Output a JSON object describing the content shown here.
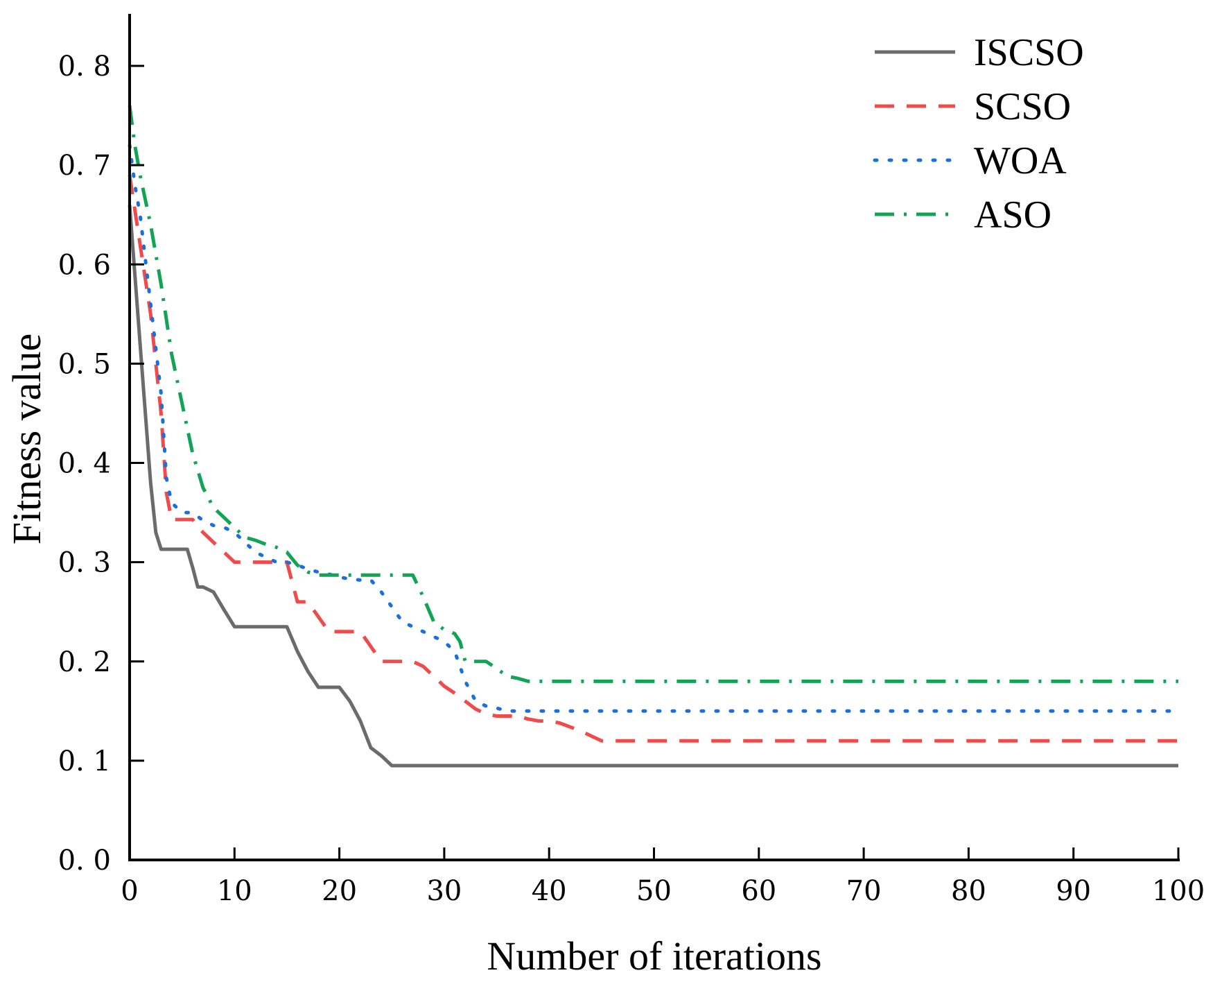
{
  "chart_data": {
    "type": "line",
    "title": "",
    "xlabel": "Number of iterations",
    "ylabel": "Fitness value",
    "xlim": [
      0,
      100
    ],
    "ylim": [
      0,
      0.85
    ],
    "xticks": [
      0,
      10,
      20,
      30,
      40,
      50,
      60,
      70,
      80,
      90,
      100
    ],
    "yticks": [
      0.0,
      0.1,
      0.2,
      0.3,
      0.4,
      0.5,
      0.6,
      0.7,
      0.8
    ],
    "xtick_labels": [
      "0",
      "10",
      "20",
      "30",
      "40",
      "50",
      "60",
      "70",
      "80",
      "90",
      "100"
    ],
    "ytick_labels": [
      "0. 0",
      "0. 1",
      "0. 2",
      "0. 3",
      "0. 4",
      "0. 5",
      "0. 6",
      "0. 7",
      "0. 8"
    ],
    "grid": false,
    "legend_position": "top-right",
    "series": [
      {
        "name": "ISCSO",
        "color": "#6b6b6b",
        "dash": "solid",
        "x": [
          0,
          1,
          2,
          2.5,
          3,
          4,
          5,
          5.5,
          6,
          6.5,
          7,
          8,
          9,
          10,
          11,
          12,
          13,
          14,
          15,
          16,
          17,
          18,
          19,
          20,
          21,
          22,
          23,
          24,
          25,
          30,
          40,
          50,
          60,
          70,
          80,
          90,
          100
        ],
        "y": [
          0.66,
          0.52,
          0.38,
          0.33,
          0.313,
          0.313,
          0.313,
          0.313,
          0.295,
          0.275,
          0.275,
          0.27,
          0.252,
          0.235,
          0.235,
          0.235,
          0.235,
          0.235,
          0.235,
          0.21,
          0.19,
          0.174,
          0.174,
          0.174,
          0.16,
          0.14,
          0.113,
          0.105,
          0.095,
          0.095,
          0.095,
          0.095,
          0.095,
          0.095,
          0.095,
          0.095,
          0.095
        ]
      },
      {
        "name": "SCSO",
        "color": "#f04a4a",
        "dash": "dashed",
        "x": [
          0,
          1,
          2,
          2.5,
          3,
          3.5,
          4,
          5,
          6,
          7,
          8,
          9,
          10,
          11,
          12,
          13,
          14,
          15,
          16,
          17,
          18,
          19,
          20,
          21,
          22,
          23,
          24,
          25,
          26,
          27,
          28,
          29,
          30,
          31,
          32,
          33,
          34,
          35,
          36,
          37,
          38,
          39,
          40,
          41,
          42,
          43,
          44,
          45,
          46,
          50,
          60,
          70,
          80,
          90,
          100
        ],
        "y": [
          0.69,
          0.62,
          0.55,
          0.5,
          0.45,
          0.37,
          0.343,
          0.343,
          0.343,
          0.33,
          0.32,
          0.31,
          0.3,
          0.3,
          0.3,
          0.3,
          0.3,
          0.3,
          0.26,
          0.26,
          0.245,
          0.23,
          0.23,
          0.23,
          0.23,
          0.215,
          0.2,
          0.2,
          0.2,
          0.2,
          0.195,
          0.185,
          0.175,
          0.168,
          0.16,
          0.152,
          0.147,
          0.145,
          0.145,
          0.145,
          0.142,
          0.14,
          0.14,
          0.138,
          0.134,
          0.13,
          0.125,
          0.12,
          0.12,
          0.12,
          0.12,
          0.12,
          0.12,
          0.12,
          0.12
        ]
      },
      {
        "name": "WOA",
        "color": "#1a6fdf",
        "dash": "dotted",
        "x": [
          0,
          0.5,
          1,
          2,
          3,
          3.5,
          4,
          5,
          6,
          7,
          8,
          9,
          10,
          11,
          12,
          13,
          14,
          15,
          16,
          17,
          18,
          19,
          20,
          21,
          22,
          23,
          24,
          25,
          26,
          27,
          28,
          29,
          30,
          31,
          32,
          33,
          34,
          35,
          36,
          37,
          38,
          39,
          40,
          50,
          60,
          70,
          80,
          90,
          100
        ],
        "y": [
          0.72,
          0.68,
          0.65,
          0.56,
          0.47,
          0.385,
          0.36,
          0.35,
          0.35,
          0.342,
          0.337,
          0.335,
          0.33,
          0.32,
          0.31,
          0.305,
          0.3,
          0.3,
          0.297,
          0.293,
          0.29,
          0.288,
          0.285,
          0.283,
          0.282,
          0.282,
          0.27,
          0.255,
          0.24,
          0.235,
          0.23,
          0.225,
          0.22,
          0.21,
          0.18,
          0.16,
          0.155,
          0.153,
          0.15,
          0.15,
          0.15,
          0.15,
          0.15,
          0.15,
          0.15,
          0.15,
          0.15,
          0.15,
          0.15
        ]
      },
      {
        "name": "ASO",
        "color": "#12a454",
        "dash": "dashdot",
        "x": [
          0,
          0.5,
          1,
          2,
          3,
          4,
          5,
          6,
          7,
          8,
          9,
          10,
          11,
          12,
          13,
          14,
          15,
          16,
          17,
          18,
          19,
          20,
          21,
          22,
          23,
          24,
          25,
          26,
          27,
          28,
          29,
          30,
          31,
          31.5,
          32,
          33,
          34,
          35,
          36,
          37,
          38,
          40,
          50,
          60,
          70,
          80,
          90,
          100
        ],
        "y": [
          0.76,
          0.72,
          0.69,
          0.64,
          0.58,
          0.51,
          0.46,
          0.41,
          0.375,
          0.355,
          0.345,
          0.335,
          0.325,
          0.322,
          0.318,
          0.315,
          0.31,
          0.297,
          0.29,
          0.287,
          0.287,
          0.287,
          0.287,
          0.287,
          0.287,
          0.287,
          0.287,
          0.287,
          0.287,
          0.265,
          0.24,
          0.232,
          0.228,
          0.22,
          0.2,
          0.2,
          0.2,
          0.193,
          0.185,
          0.183,
          0.18,
          0.18,
          0.18,
          0.18,
          0.18,
          0.18,
          0.18,
          0.18
        ]
      }
    ]
  }
}
